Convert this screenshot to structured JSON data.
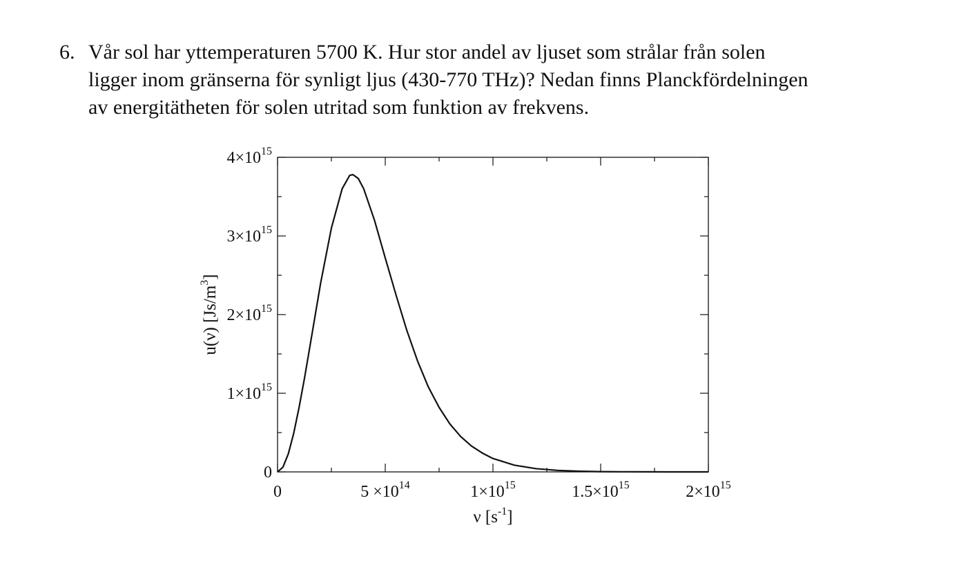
{
  "problem": {
    "number": "6.",
    "lines": [
      "Vår sol har yttemperaturen 5700 K. Hur stor andel av ljuset som strålar från solen",
      "ligger inom gränserna för synligt ljus (430-770 THz)?  Nedan finns Planckfördelningen",
      "av energitätheten för solen utritad som funktion av frekvens."
    ]
  },
  "chart_data": {
    "type": "line",
    "title": "",
    "xlabel": {
      "base": "ν [s",
      "sup": "-1",
      "tail": "]"
    },
    "ylabel": {
      "base": "u(ν) [Js/m",
      "sup": "3",
      "tail": "]"
    },
    "xlim": [
      0,
      2000000000000000.0
    ],
    "ylim": [
      0,
      4000000000000000.0
    ],
    "grid": false,
    "legend": "none",
    "line_color": "#111111",
    "x_ticks": [
      {
        "value": 0,
        "base": "0",
        "exp": ""
      },
      {
        "value": 500000000000000.0,
        "base": "5 ×10",
        "exp": "14"
      },
      {
        "value": 1000000000000000.0,
        "base": "1×10",
        "exp": "15"
      },
      {
        "value": 1500000000000000.0,
        "base": "1.5×10",
        "exp": "15"
      },
      {
        "value": 2000000000000000.0,
        "base": "2×10",
        "exp": "15"
      }
    ],
    "y_ticks": [
      {
        "value": 0,
        "base": "0",
        "exp": ""
      },
      {
        "value": 1000000000000000.0,
        "base": "1×10",
        "exp": "15"
      },
      {
        "value": 2000000000000000.0,
        "base": "2×10",
        "exp": "15"
      },
      {
        "value": 3000000000000000.0,
        "base": "3×10",
        "exp": "15"
      },
      {
        "value": 4000000000000000.0,
        "base": "4×10",
        "exp": "15"
      }
    ],
    "series": [
      {
        "x": [
          0,
          25000000000000.0,
          50000000000000.0,
          75000000000000.0,
          100000000000000.0,
          125000000000000.0,
          150000000000000.0,
          200000000000000.0,
          250000000000000.0,
          300000000000000.0,
          335000000000000.0,
          350000000000000.0,
          375000000000000.0,
          400000000000000.0,
          450000000000000.0,
          500000000000000.0,
          550000000000000.0,
          600000000000000.0,
          650000000000000.0,
          700000000000000.0,
          750000000000000.0,
          800000000000000.0,
          850000000000000.0,
          900000000000000.0,
          950000000000000.0,
          1000000000000000.0,
          1100000000000000.0,
          1200000000000000.0,
          1300000000000000.0,
          1400000000000000.0,
          1500000000000000.0,
          1600000000000000.0,
          1700000000000000.0,
          1800000000000000.0,
          1900000000000000.0,
          2000000000000000.0
        ],
        "y": [
          0,
          60000000000000.0,
          230000000000000.0,
          490000000000000.0,
          820000000000000.0,
          1190000000000000.0,
          1590000000000000.0,
          2400000000000000.0,
          3100000000000000.0,
          3600000000000000.0,
          3770000000000000.0,
          3780000000000000.0,
          3730000000000000.0,
          3600000000000000.0,
          3200000000000000.0,
          2720000000000000.0,
          2250000000000000.0,
          1800000000000000.0,
          1410000000000000.0,
          1080000000000000.0,
          820000000000000.0,
          610000000000000.0,
          450000000000000.0,
          330000000000000.0,
          240000000000000.0,
          170000000000000.0,
          85000000000000.0,
          41000000000000.0,
          19000000000000.0,
          8700000000000.0,
          3900000000000.0,
          1700000000000.0,
          700000000000.0,
          300000000000.0,
          120000000000.0,
          50000000000.0
        ]
      }
    ]
  }
}
